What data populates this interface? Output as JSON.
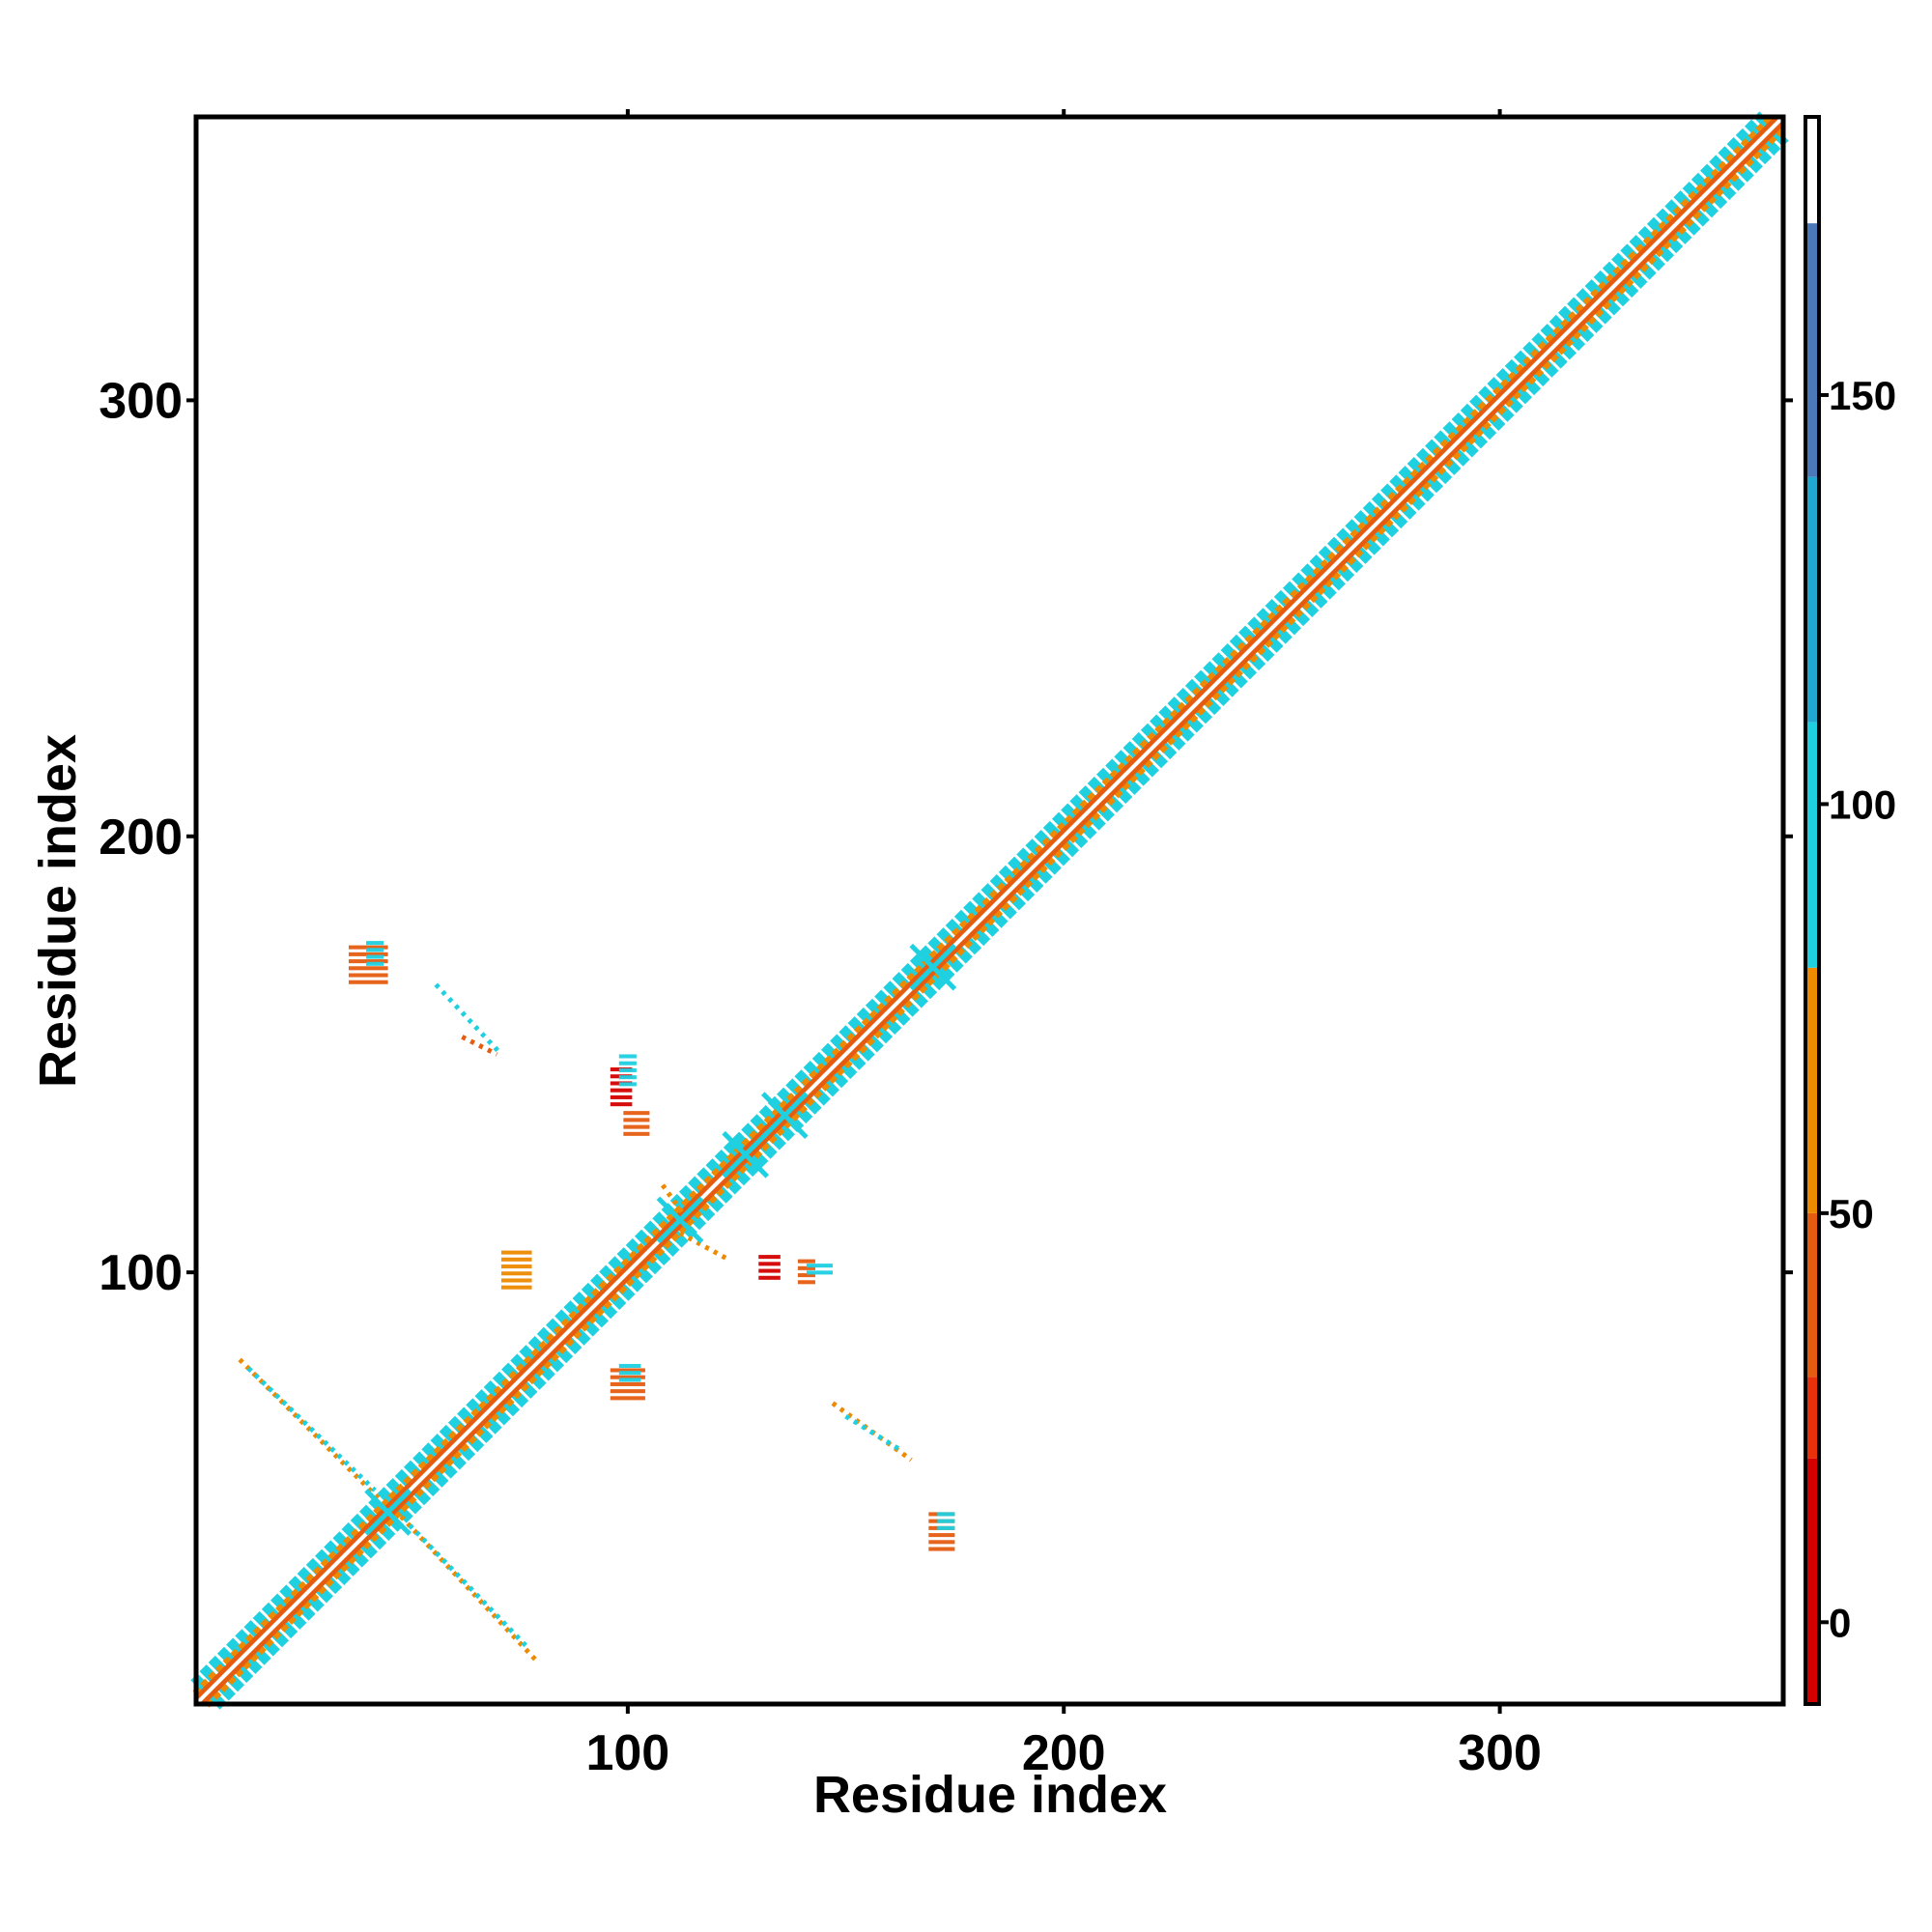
{
  "chart_data": {
    "type": "heatmap",
    "title": "",
    "xlabel": "Residue index",
    "ylabel": "Residue index",
    "xlim": [
      1,
      365
    ],
    "ylim": [
      1,
      365
    ],
    "x_ticks": [
      "100",
      "200",
      "300"
    ],
    "y_ticks": [
      "100",
      "200",
      "300"
    ],
    "grid": false,
    "colorbar": {
      "range": [
        -10,
        184
      ],
      "tick_values": [
        0,
        50,
        100,
        150
      ],
      "tick_labels": [
        "0",
        "50",
        "100",
        "150"
      ],
      "bands": [
        {
          "from": -10,
          "to": 20,
          "color": "#d40000"
        },
        {
          "from": 20,
          "to": 30,
          "color": "#e8300a"
        },
        {
          "from": 30,
          "to": 50,
          "color": "#e55c10"
        },
        {
          "from": 50,
          "to": 80,
          "color": "#ee8a00"
        },
        {
          "from": 80,
          "to": 110,
          "color": "#1ed0e0"
        },
        {
          "from": 110,
          "to": 140,
          "color": "#20a8d0"
        },
        {
          "from": 140,
          "to": 171,
          "color": "#4a78b8"
        },
        {
          "from": 171,
          "to": 184,
          "color": "#ffffff"
        }
      ]
    },
    "diagonal_band": {
      "start": 1,
      "end": 365
    },
    "off_diagonal_contacts": [
      {
        "x": [
          11,
          46
        ],
        "y": [
          80,
          45
        ],
        "color": "#ee8a00"
      },
      {
        "x": [
          13,
          42
        ],
        "y": [
          78,
          50
        ],
        "color": "#1ed0e0"
      },
      {
        "x": [
          48,
          79
        ],
        "y": [
          44,
          11
        ],
        "color": "#ee8a00"
      },
      {
        "x": [
          50,
          77
        ],
        "y": [
          42,
          14
        ],
        "color": "#1ed0e0"
      },
      {
        "x": [
          56,
          71
        ],
        "y": [
          166,
          150
        ],
        "color": "#1ed0e0"
      },
      {
        "x": [
          62,
          70
        ],
        "y": [
          154,
          150
        ],
        "color": "#e55c10"
      },
      {
        "x": [
          147,
          165
        ],
        "y": [
          70,
          57
        ],
        "color": "#ee8a00"
      },
      {
        "x": [
          150,
          163
        ],
        "y": [
          67,
          59
        ],
        "color": "#1ed0e0"
      },
      {
        "x": [
          108,
          113
        ],
        "y": [
          120,
          113
        ],
        "color": "#ee8a00"
      },
      {
        "x": [
          112,
          123
        ],
        "y": [
          109,
          103
        ],
        "color": "#ee8a00"
      }
    ],
    "off_diagonal_patches": [
      {
        "x": [
          36,
          45
        ],
        "y": [
          167,
          175
        ],
        "color": "#e55c10"
      },
      {
        "x": [
          40,
          44
        ],
        "y": [
          171,
          176
        ],
        "color": "#1ed0e0"
      },
      {
        "x": [
          71,
          78
        ],
        "y": [
          96,
          105
        ],
        "color": "#ee8a00"
      },
      {
        "x": [
          96,
          101
        ],
        "y": [
          139,
          147
        ],
        "color": "#d40000"
      },
      {
        "x": [
          98,
          102
        ],
        "y": [
          143,
          150
        ],
        "color": "#1ed0e0"
      },
      {
        "x": [
          99,
          105
        ],
        "y": [
          132,
          137
        ],
        "color": "#e55c10"
      },
      {
        "x": [
          96,
          104
        ],
        "y": [
          71,
          78
        ],
        "color": "#e55c10"
      },
      {
        "x": [
          98,
          103
        ],
        "y": [
          75,
          79
        ],
        "color": "#1ed0e0"
      },
      {
        "x": [
          130,
          135
        ],
        "y": [
          99,
          104
        ],
        "color": "#d40000"
      },
      {
        "x": [
          139,
          143
        ],
        "y": [
          98,
          103
        ],
        "color": "#e55c10"
      },
      {
        "x": [
          141,
          147
        ],
        "y": [
          99,
          102
        ],
        "color": "#1ed0e0"
      },
      {
        "x": [
          169,
          175
        ],
        "y": [
          37,
          45
        ],
        "color": "#e55c10"
      },
      {
        "x": [
          171,
          175
        ],
        "y": [
          41,
          45
        ],
        "color": "#1ed0e0"
      }
    ],
    "crossings": [
      {
        "x": 45,
        "y": 45,
        "color": "#1ed0e0"
      },
      {
        "x": 112,
        "y": 112,
        "color": "#1ed0e0"
      },
      {
        "x": 127,
        "y": 127,
        "color": "#1ed0e0"
      },
      {
        "x": 136,
        "y": 136,
        "color": "#1ed0e0"
      },
      {
        "x": 170,
        "y": 170,
        "color": "#1ed0e0"
      }
    ]
  }
}
